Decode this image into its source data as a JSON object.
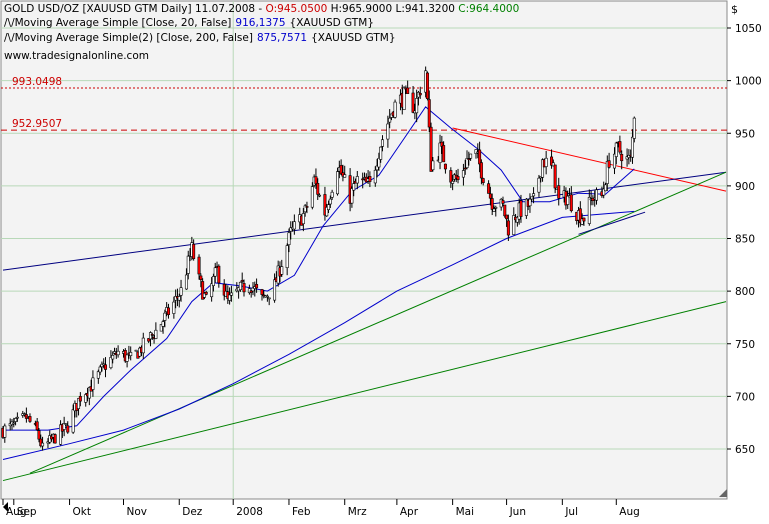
{
  "header": {
    "line1": {
      "prefix": "GOLD USD/OZ [XAUUSD GTM  Daily] 11.07.2008 - ",
      "open": "O:945.0500",
      "high": " H:965.9000",
      "low": " L:941.3200",
      "close": " C:964.4000"
    },
    "line2": {
      "label": "Moving Average Simple [Close, 20, False]",
      "value": "916,1375",
      "suffix": "{XAUUSD GTM}"
    },
    "line3": {
      "label": "Moving Average Simple(2) [Close, 200, False]",
      "value": "875,7571",
      "suffix": "{XAUUSD GTM}"
    },
    "site": "www.tradesignalonline.com"
  },
  "level_labels": {
    "upper": "993.0498",
    "lower": "952.9507"
  },
  "currency_symbol": "$",
  "colors": {
    "price_up": "#ffffff",
    "price_down": "#ff0000",
    "candle_outline": "#000000",
    "ma20": "#0000cc",
    "ma200": "#0000cc",
    "hline": "#cc0000",
    "resistance": "#ff0000",
    "support_blue": "#000080",
    "trend_green": "#008000",
    "grid": "#b8d8b8",
    "plot_bg": "#f3f3f3"
  },
  "chart_data": {
    "type": "candlestick",
    "title": "GOLD USD/OZ [XAUUSD GTM Daily]",
    "ylabel": "$",
    "ylim": [
      610,
      1075
    ],
    "yticks": [
      650,
      700,
      750,
      800,
      850,
      900,
      950,
      1000,
      1050
    ],
    "xticks": [
      "Aug",
      "Sep",
      "Okt",
      "Nov",
      "Dez",
      "2008",
      "Feb",
      "Mrz",
      "Apr",
      "Mai",
      "Jun",
      "Jul",
      "Aug"
    ],
    "x_range": [
      "2007-07-26",
      "2008-08-31"
    ],
    "grid": true,
    "last_bar": {
      "date": "11.07.2008",
      "open": 945.05,
      "high": 965.9,
      "low": 941.32,
      "close": 964.4
    },
    "close_path": [
      [
        "2007-07-26",
        668
      ],
      [
        "2007-08-01",
        672
      ],
      [
        "2007-08-08",
        680
      ],
      [
        "2007-08-14",
        666
      ],
      [
        "2007-08-17",
        650
      ],
      [
        "2007-08-23",
        660
      ],
      [
        "2007-08-31",
        672
      ],
      [
        "2007-09-07",
        700
      ],
      [
        "2007-09-14",
        712
      ],
      [
        "2007-09-21",
        730
      ],
      [
        "2007-09-28",
        742
      ],
      [
        "2007-10-05",
        735
      ],
      [
        "2007-10-12",
        748
      ],
      [
        "2007-10-19",
        762
      ],
      [
        "2007-10-26",
        780
      ],
      [
        "2007-11-02",
        800
      ],
      [
        "2007-11-08",
        840
      ],
      [
        "2007-11-12",
        810
      ],
      [
        "2007-11-16",
        790
      ],
      [
        "2007-11-22",
        820
      ],
      [
        "2007-11-28",
        790
      ],
      [
        "2007-12-04",
        800
      ],
      [
        "2007-12-10",
        808
      ],
      [
        "2007-12-17",
        792
      ],
      [
        "2007-12-24",
        805
      ],
      [
        "2008-01-02",
        855
      ],
      [
        "2008-01-10",
        875
      ],
      [
        "2008-01-15",
        905
      ],
      [
        "2008-01-21",
        875
      ],
      [
        "2008-01-28",
        920
      ],
      [
        "2008-02-04",
        890
      ],
      [
        "2008-02-08",
        905
      ],
      [
        "2008-02-15",
        900
      ],
      [
        "2008-02-21",
        940
      ],
      [
        "2008-02-28",
        975
      ],
      [
        "2008-03-05",
        985
      ],
      [
        "2008-03-11",
        975
      ],
      [
        "2008-03-17",
        1010
      ],
      [
        "2008-03-20",
        920
      ],
      [
        "2008-03-25",
        935
      ],
      [
        "2008-03-31",
        910
      ],
      [
        "2008-04-04",
        905
      ],
      [
        "2008-04-09",
        925
      ],
      [
        "2008-04-14",
        930
      ],
      [
        "2008-04-18",
        910
      ],
      [
        "2008-04-23",
        885
      ],
      [
        "2008-04-29",
        880
      ],
      [
        "2008-05-02",
        860
      ],
      [
        "2008-05-07",
        875
      ],
      [
        "2008-05-12",
        880
      ],
      [
        "2008-05-16",
        885
      ],
      [
        "2008-05-21",
        925
      ],
      [
        "2008-05-27",
        915
      ],
      [
        "2008-05-30",
        885
      ],
      [
        "2008-06-04",
        890
      ],
      [
        "2008-06-09",
        875
      ],
      [
        "2008-06-13",
        870
      ],
      [
        "2008-06-18",
        890
      ],
      [
        "2008-06-23",
        890
      ],
      [
        "2008-06-27",
        925
      ],
      [
        "2008-07-02",
        935
      ],
      [
        "2008-07-07",
        925
      ],
      [
        "2008-07-09",
        925
      ],
      [
        "2008-07-11",
        964.4
      ]
    ],
    "series": [
      {
        "name": "Moving Average Simple [Close, 20, False]",
        "points": [
          [
            "2007-07-26",
            668
          ],
          [
            "2007-08-20",
            668
          ],
          [
            "2007-09-05",
            672
          ],
          [
            "2007-09-20",
            700
          ],
          [
            "2007-10-05",
            725
          ],
          [
            "2007-10-25",
            755
          ],
          [
            "2007-11-08",
            790
          ],
          [
            "2007-11-20",
            808
          ],
          [
            "2007-12-05",
            805
          ],
          [
            "2007-12-20",
            800
          ],
          [
            "2008-01-04",
            815
          ],
          [
            "2008-01-20",
            862
          ],
          [
            "2008-02-05",
            895
          ],
          [
            "2008-02-20",
            910
          ],
          [
            "2008-03-05",
            945
          ],
          [
            "2008-03-17",
            975
          ],
          [
            "2008-03-31",
            955
          ],
          [
            "2008-04-15",
            935
          ],
          [
            "2008-04-28",
            915
          ],
          [
            "2008-05-10",
            885
          ],
          [
            "2008-05-25",
            885
          ],
          [
            "2008-06-10",
            893
          ],
          [
            "2008-06-25",
            892
          ],
          [
            "2008-07-11",
            916.14
          ]
        ]
      },
      {
        "name": "Moving Average Simple(2) [Close, 200, False]",
        "points": [
          [
            "2007-07-26",
            640
          ],
          [
            "2007-09-01",
            655
          ],
          [
            "2007-10-01",
            668
          ],
          [
            "2007-11-01",
            688
          ],
          [
            "2007-12-01",
            712
          ],
          [
            "2008-01-01",
            740
          ],
          [
            "2008-02-01",
            770
          ],
          [
            "2008-03-01",
            800
          ],
          [
            "2008-04-01",
            825
          ],
          [
            "2008-05-01",
            850
          ],
          [
            "2008-06-01",
            870
          ],
          [
            "2008-07-11",
            875.76
          ]
        ]
      }
    ],
    "horizontal_levels": [
      993.0498,
      952.9507
    ],
    "trendlines": [
      {
        "name": "resistance",
        "from": [
          "2008-04-01",
          955
        ],
        "to": [
          "2008-08-31",
          895
        ]
      },
      {
        "name": "long-support",
        "from": [
          "2007-07-26",
          820
        ],
        "to": [
          "2008-08-31",
          913
        ]
      },
      {
        "name": "uptrend-green",
        "from": [
          "2007-08-10",
          627
        ],
        "to": [
          "2008-08-31",
          913
        ]
      },
      {
        "name": "lower-green",
        "from": [
          "2007-07-26",
          620
        ],
        "to": [
          "2008-08-31",
          790
        ]
      },
      {
        "name": "jun-support",
        "from": [
          "2008-06-10",
          854
        ],
        "to": [
          "2008-07-17",
          875
        ]
      }
    ]
  }
}
